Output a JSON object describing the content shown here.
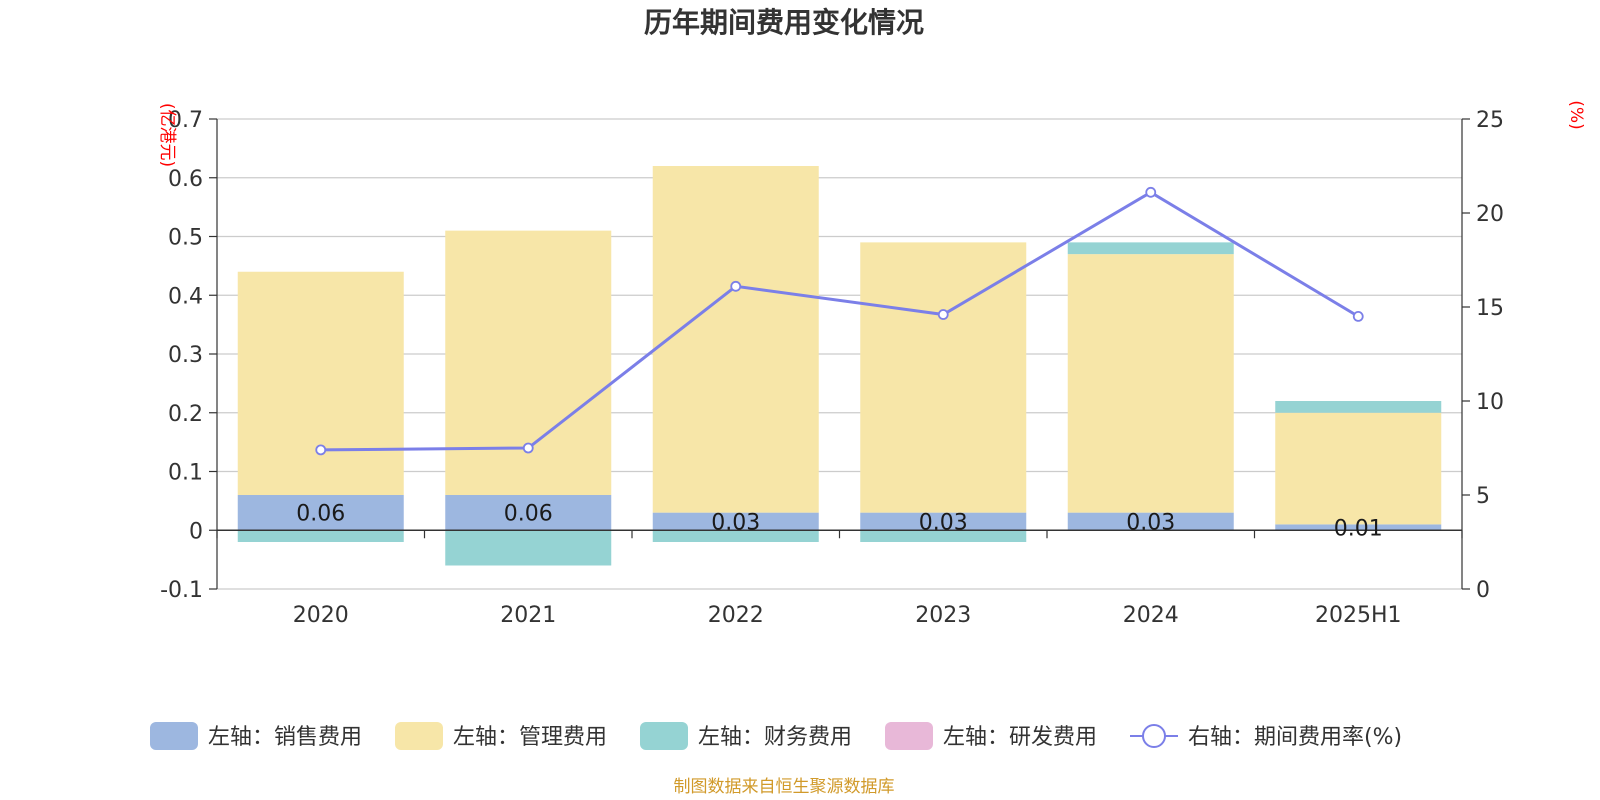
{
  "chart_data": {
    "type": "bar",
    "stacked": true,
    "title": "历年期间费用变化情况",
    "categories": [
      "2020",
      "2021",
      "2022",
      "2023",
      "2024",
      "2025H1"
    ],
    "left_axis": {
      "unit_label": "(亿港元)",
      "ylim": [
        -0.1,
        0.7
      ],
      "ticks": [
        "-0.1",
        "0",
        "0.1",
        "0.2",
        "0.3",
        "0.4",
        "0.5",
        "0.6",
        "0.7"
      ]
    },
    "right_axis": {
      "unit_label": "(%)",
      "ylim": [
        0,
        25
      ],
      "ticks": [
        "0",
        "5",
        "10",
        "15",
        "20",
        "25"
      ]
    },
    "series": [
      {
        "name": "左轴：销售费用",
        "axis": "left",
        "type": "bar",
        "color": "#9db7e0",
        "values": [
          0.06,
          0.06,
          0.03,
          0.03,
          0.03,
          0.01
        ],
        "labels": [
          "0.06",
          "0.06",
          "0.03",
          "0.03",
          "0.03",
          "0.01"
        ]
      },
      {
        "name": "左轴：管理费用",
        "axis": "left",
        "type": "bar",
        "color": "#f7e6a8",
        "values": [
          0.38,
          0.45,
          0.59,
          0.46,
          0.44,
          0.19
        ]
      },
      {
        "name": "左轴：财务费用",
        "axis": "left",
        "type": "bar",
        "color": "#95d3d3",
        "values": [
          -0.02,
          -0.06,
          -0.02,
          -0.02,
          0.02,
          0.02
        ]
      },
      {
        "name": "左轴：研发费用",
        "axis": "left",
        "type": "bar",
        "color": "#e8b8d8",
        "values": [
          0,
          0,
          0,
          0,
          0,
          0
        ]
      },
      {
        "name": "右轴：期间费用率(%)",
        "axis": "right",
        "type": "line",
        "color": "#7b7fe8",
        "values": [
          7.4,
          7.5,
          16.1,
          14.6,
          21.1,
          14.5
        ]
      }
    ],
    "grid": true,
    "legend_position": "bottom"
  },
  "source_note": "制图数据来自恒生聚源数据库"
}
